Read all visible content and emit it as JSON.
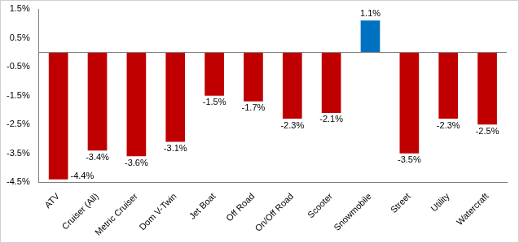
{
  "chart_data": {
    "type": "bar",
    "categories": [
      "ATV",
      "Cruiser (All)",
      "Metric Cruiser",
      "Dom V-Twin",
      "Jet Boat",
      "Off Road",
      "On/Off Road",
      "Scooter",
      "Snowmobile",
      "Street",
      "Utility",
      "Watercraft"
    ],
    "values": [
      -4.4,
      -3.4,
      -3.6,
      -3.1,
      -1.5,
      -1.7,
      -2.3,
      -2.1,
      1.1,
      -3.5,
      -2.3,
      -2.5
    ],
    "value_labels": [
      "-4.4%",
      "-3.4%",
      "-3.6%",
      "-3.1%",
      "-1.5%",
      "-1.7%",
      "-2.3%",
      "-2.1%",
      "1.1%",
      "-3.5%",
      "-2.3%",
      "-2.5%"
    ],
    "colors": [
      "#c00000",
      "#c00000",
      "#c00000",
      "#c00000",
      "#c00000",
      "#c00000",
      "#c00000",
      "#c00000",
      "#0070c0",
      "#c00000",
      "#c00000",
      "#c00000"
    ],
    "ylim": [
      -4.5,
      1.5
    ],
    "yticks": [
      {
        "value": -4.5,
        "label": "-4.5%"
      },
      {
        "value": -3.5,
        "label": "-3.5%"
      },
      {
        "value": -2.5,
        "label": "-2.5%"
      },
      {
        "value": -1.5,
        "label": "-1.5%"
      },
      {
        "value": -0.5,
        "label": "-0.5%"
      },
      {
        "value": 0.5,
        "label": "0.5%"
      },
      {
        "value": 1.5,
        "label": "1.5%"
      }
    ],
    "grid": false,
    "data_labels": true
  }
}
